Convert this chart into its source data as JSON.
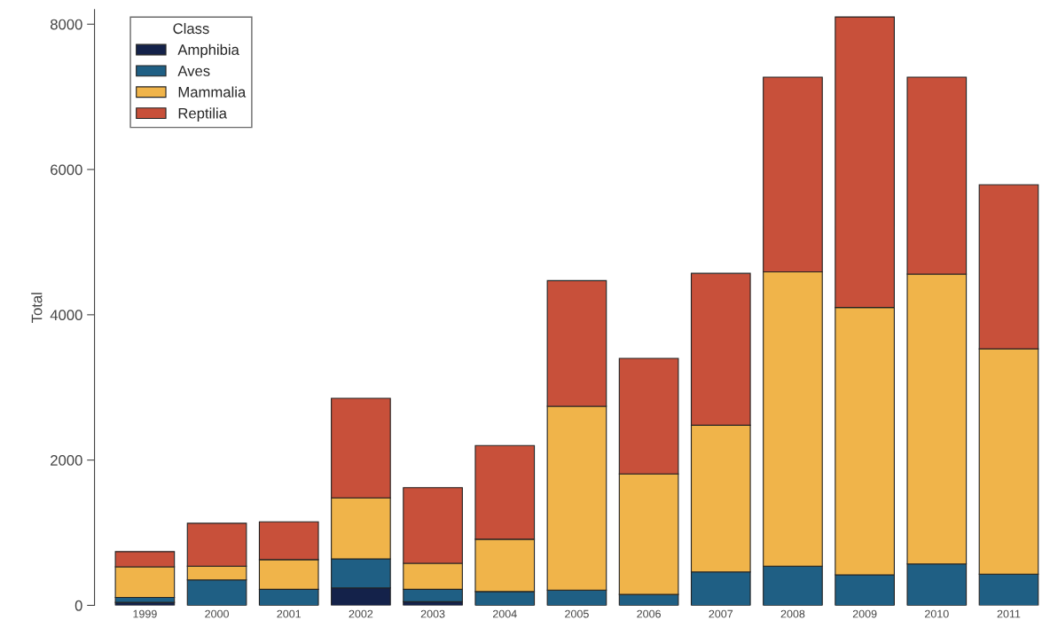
{
  "chart_data": {
    "type": "bar",
    "stacked": true,
    "ylabel": "Total",
    "legend_title": "Class",
    "legend": "top left",
    "categories": [
      "1999",
      "2000",
      "2001",
      "2002",
      "2003",
      "2004",
      "2005",
      "2006",
      "2007",
      "2008",
      "2009",
      "2010",
      "2011"
    ],
    "series": [
      {
        "name": "Amphibia",
        "color": "#14224a",
        "values": [
          40,
          0,
          0,
          240,
          50,
          0,
          0,
          0,
          0,
          0,
          0,
          0,
          null
        ]
      },
      {
        "name": "Aves",
        "color": "#1f5f84",
        "values": [
          70,
          350,
          220,
          400,
          170,
          190,
          210,
          150,
          460,
          540,
          420,
          570,
          430
        ]
      },
      {
        "name": "Mammalia",
        "color": "#f0b44a",
        "values": [
          420,
          190,
          410,
          840,
          360,
          720,
          2530,
          1660,
          2020,
          4050,
          3680,
          3990,
          3100
        ]
      },
      {
        "name": "Reptilia",
        "color": "#c8503a",
        "values": [
          210,
          590,
          520,
          1370,
          1040,
          1290,
          1730,
          1590,
          2090,
          2680,
          4000,
          2710,
          2260
        ]
      }
    ],
    "ylim": [
      0,
      8200
    ],
    "yticks": [
      0,
      2000,
      4000,
      6000,
      8000
    ],
    "grid": false
  }
}
